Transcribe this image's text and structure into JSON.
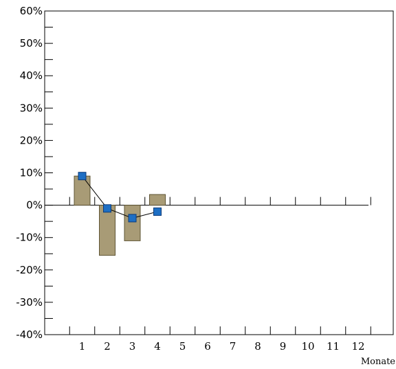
{
  "chart_data": {
    "type": "bar",
    "categories": [
      "1",
      "2",
      "3",
      "4",
      "5",
      "6",
      "7",
      "8",
      "9",
      "10",
      "11",
      "12"
    ],
    "xlabel": "Monate",
    "ylabel": "",
    "ylim": [
      -40,
      60
    ],
    "y_ticks": [
      -40,
      -30,
      -20,
      -10,
      0,
      10,
      20,
      30,
      40,
      50,
      60
    ],
    "y_tick_labels": [
      "-40%",
      "-30%",
      "-20%",
      "-10%",
      "0%",
      "10%",
      "20%",
      "30%",
      "40%",
      "50%",
      "60%"
    ],
    "series": [
      {
        "kind": "bar",
        "values": [
          9,
          -15.5,
          -11,
          3.3,
          null,
          null,
          null,
          null,
          null,
          null,
          null,
          null
        ]
      },
      {
        "kind": "line",
        "values": [
          9,
          -1,
          -4,
          -2,
          null,
          null,
          null,
          null,
          null,
          null,
          null,
          null
        ]
      }
    ],
    "colors": {
      "bar": "#a89b76",
      "bar_stroke": "#5e5434",
      "marker": "#1e6fc4",
      "marker_stroke": "#0c3a78"
    },
    "grid": false
  }
}
